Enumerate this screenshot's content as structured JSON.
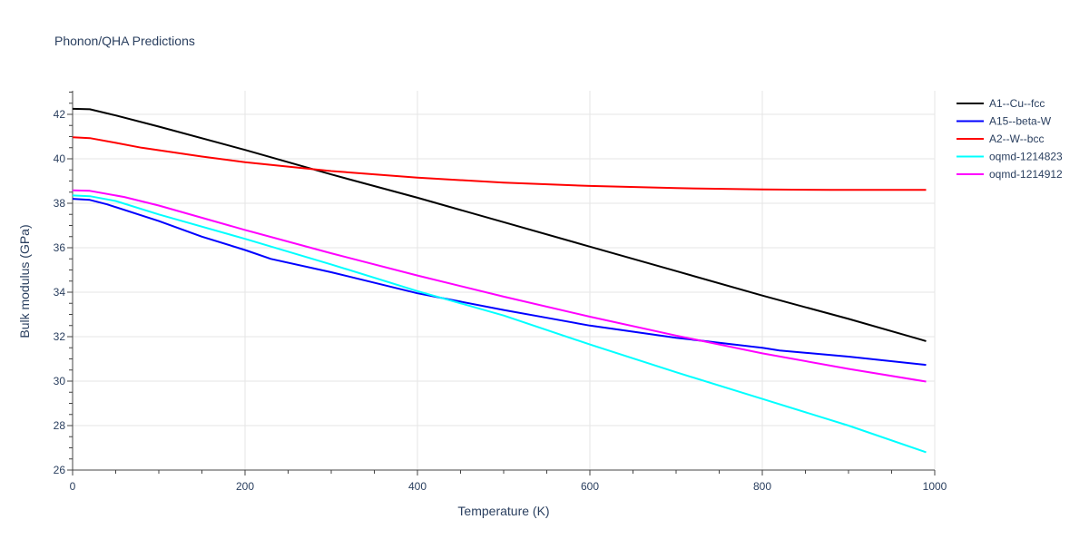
{
  "chart_data": {
    "type": "line",
    "title": "Phonon/QHA Predictions",
    "xlabel": "Temperature (K)",
    "ylabel": "Bulk modulus (GPa)",
    "xlim": [
      0,
      1000
    ],
    "ylim": [
      26,
      43
    ],
    "xticks": [
      0,
      200,
      400,
      600,
      800,
      1000
    ],
    "yticks": [
      26,
      28,
      30,
      32,
      34,
      36,
      38,
      40,
      42
    ],
    "grid": true,
    "legend_placement": "right",
    "series": [
      {
        "name": "A1--Cu--fcc",
        "color": "#000000",
        "x": [
          0,
          20,
          50,
          100,
          200,
          300,
          400,
          500,
          600,
          700,
          800,
          900,
          990
        ],
        "y": [
          42.25,
          42.23,
          41.95,
          41.45,
          40.4,
          39.3,
          38.25,
          37.15,
          36.05,
          34.95,
          33.85,
          32.8,
          31.8
        ]
      },
      {
        "name": "A15--beta-W",
        "color": "#0000ff",
        "x": [
          0,
          20,
          40,
          100,
          150,
          200,
          230,
          300,
          400,
          500,
          550,
          600,
          700,
          800,
          820,
          900,
          990
        ],
        "y": [
          38.2,
          38.15,
          37.95,
          37.2,
          36.5,
          35.9,
          35.5,
          34.9,
          33.95,
          33.2,
          32.85,
          32.5,
          31.95,
          31.5,
          31.38,
          31.1,
          30.73
        ]
      },
      {
        "name": "A2--W--bcc",
        "color": "#ff0000",
        "x": [
          0,
          20,
          50,
          80,
          150,
          200,
          300,
          400,
          500,
          600,
          700,
          800,
          880,
          990
        ],
        "y": [
          40.97,
          40.93,
          40.72,
          40.5,
          40.1,
          39.85,
          39.45,
          39.15,
          38.93,
          38.78,
          38.68,
          38.62,
          38.6,
          38.6
        ]
      },
      {
        "name": "oqmd-1214823",
        "color": "#00ffff",
        "x": [
          0,
          20,
          50,
          100,
          200,
          300,
          400,
          500,
          600,
          700,
          800,
          900,
          990
        ],
        "y": [
          38.35,
          38.32,
          38.1,
          37.5,
          36.4,
          35.25,
          34.05,
          32.95,
          31.65,
          30.4,
          29.2,
          28.0,
          26.8
        ]
      },
      {
        "name": "oqmd-1214912",
        "color": "#ff00ff",
        "x": [
          0,
          20,
          60,
          100,
          200,
          300,
          400,
          500,
          600,
          700,
          800,
          900,
          990
        ],
        "y": [
          38.58,
          38.56,
          38.28,
          37.9,
          36.8,
          35.75,
          34.75,
          33.8,
          32.9,
          32.05,
          31.25,
          30.55,
          29.98
        ]
      }
    ]
  }
}
